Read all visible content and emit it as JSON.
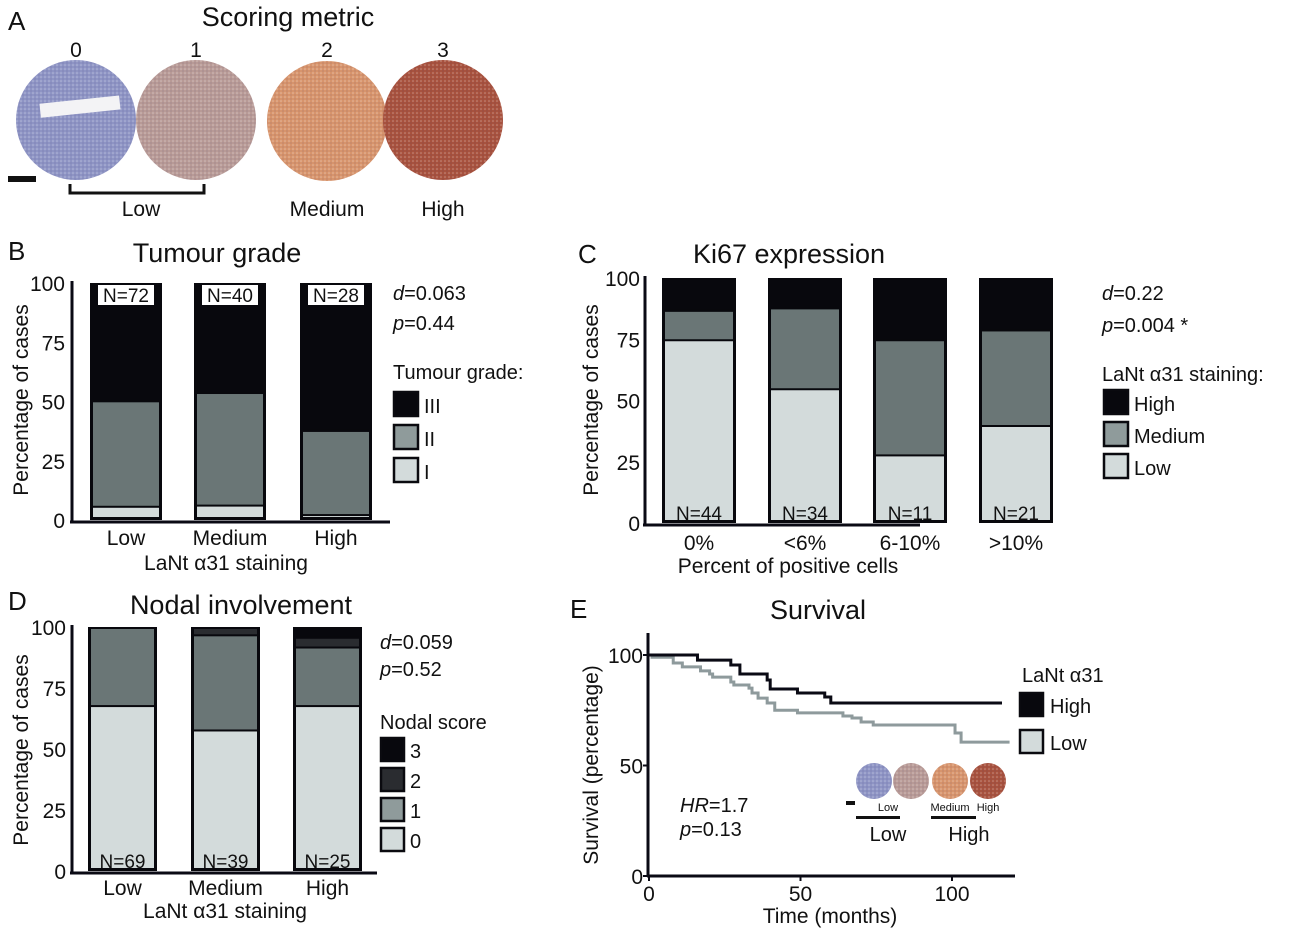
{
  "figure": {
    "panelA": {
      "letter": "A",
      "title": "Scoring metric",
      "scores": [
        "0",
        "1",
        "2",
        "3"
      ],
      "groups": [
        "Low",
        "Medium",
        "High"
      ],
      "core_colors": [
        "#8e94c4",
        "#b89a96",
        "#d7946c",
        "#a8523e"
      ]
    },
    "colors": {
      "dark": "#08080d",
      "darkgrey": "#2a2c30",
      "medium": "#6a7676",
      "medium_legend": "#8f9b9b",
      "light": "#d3dbdb",
      "high_line": "#0a0a14",
      "low_line": "#8e9a9c"
    }
  },
  "chart_data": [
    {
      "panel": "B",
      "type": "bar",
      "stacked": true,
      "title": "Tumour grade",
      "xlabel": "LaNt α31 staining",
      "ylabel": "Percentage of cases",
      "ylim": [
        0,
        100
      ],
      "yticks": [
        "0",
        "25",
        "50",
        "75",
        "100"
      ],
      "categories": [
        "Low",
        "Medium",
        "High"
      ],
      "n_labels": [
        "N=72",
        "N=40",
        "N=28"
      ],
      "n_position": "top",
      "series": [
        {
          "name": "I",
          "values": [
            6,
            6.5,
            2.5
          ]
        },
        {
          "name": "II",
          "values": [
            44.5,
            47.5,
            35.5
          ]
        },
        {
          "name": "III",
          "values": [
            49.5,
            46,
            62
          ]
        }
      ],
      "legend_title": "Tumour grade:",
      "legend": [
        "III",
        "II",
        "I"
      ],
      "stats": [
        {
          "italic": "d",
          "rest": "=0.063"
        },
        {
          "italic": "p",
          "rest": "=0.44"
        }
      ]
    },
    {
      "panel": "C",
      "type": "bar",
      "stacked": true,
      "title": "Ki67 expression",
      "xlabel": "Percent of positive cells",
      "ylabel": "Percentage of cases",
      "ylim": [
        0,
        100
      ],
      "yticks": [
        "0",
        "25",
        "50",
        "75",
        "100"
      ],
      "categories": [
        "0%",
        "<6%",
        "6-10%",
        ">10%"
      ],
      "n_labels": [
        "N=44",
        "N=34",
        "N=11",
        "N=21"
      ],
      "n_position": "bottom",
      "series": [
        {
          "name": "Low",
          "values": [
            75,
            55,
            28,
            40
          ]
        },
        {
          "name": "Medium",
          "values": [
            12,
            33,
            47,
            39
          ]
        },
        {
          "name": "High",
          "values": [
            13,
            12,
            25,
            21
          ]
        }
      ],
      "legend_title": "LaNt α31 staining:",
      "legend": [
        "High",
        "Medium",
        "Low"
      ],
      "stats": [
        {
          "italic": "d",
          "rest": "=0.22"
        },
        {
          "italic": "p",
          "rest": "=0.004 *"
        }
      ]
    },
    {
      "panel": "D",
      "type": "bar",
      "stacked": true,
      "title": "Nodal involvement",
      "xlabel": "LaNt α31 staining",
      "ylabel": "Percentage of cases",
      "ylim": [
        0,
        100
      ],
      "yticks": [
        "0",
        "25",
        "50",
        "75",
        "100"
      ],
      "categories": [
        "Low",
        "Medium",
        "High"
      ],
      "n_labels": [
        "N=69",
        "N=39",
        "N=25"
      ],
      "n_position": "bottom",
      "series": [
        {
          "name": "0",
          "values": [
            68,
            58,
            68
          ]
        },
        {
          "name": "1",
          "values": [
            32,
            39,
            24
          ]
        },
        {
          "name": "2",
          "values": [
            0,
            3,
            4
          ]
        },
        {
          "name": "3",
          "values": [
            0,
            0,
            4
          ]
        }
      ],
      "legend_title": "Nodal score",
      "legend": [
        "3",
        "2",
        "1",
        "0"
      ],
      "stats": [
        {
          "italic": "d",
          "rest": "=0.059"
        },
        {
          "italic": "p",
          "rest": "=0.52"
        }
      ]
    },
    {
      "panel": "E",
      "type": "line",
      "step": true,
      "title": "Survival",
      "xlabel": "Time (months)",
      "ylabel": "Survival (percentage)",
      "xlim": [
        0,
        120
      ],
      "ylim": [
        0,
        100
      ],
      "xticks": [
        "0",
        "50",
        "100"
      ],
      "yticks": [
        "0",
        "50",
        "100"
      ],
      "series": [
        {
          "name": "High",
          "x": [
            0,
            16,
            27,
            30,
            39,
            40,
            49,
            58,
            60,
            116.5
          ],
          "y": [
            100,
            97.7,
            95.5,
            91.4,
            88.7,
            84.6,
            82.8,
            81,
            78.3,
            78.3
          ]
        },
        {
          "name": "Low",
          "x": [
            0,
            1,
            8,
            11,
            17,
            20,
            21,
            27,
            28,
            33,
            34,
            36,
            39,
            41.5,
            49,
            64,
            67,
            70,
            74,
            101,
            103,
            119
          ],
          "y": [
            100,
            99,
            96.4,
            94.6,
            92.8,
            91.4,
            90,
            87.8,
            86.4,
            85,
            82.8,
            80.5,
            78.3,
            75,
            73.8,
            72.4,
            71.5,
            69.7,
            68.3,
            64.7,
            60.6,
            60.6
          ]
        }
      ],
      "legend_title": "LaNt α31",
      "legend": [
        "High",
        "Low"
      ],
      "stats": [
        {
          "italic": "HR",
          "rest": "=1.7"
        },
        {
          "italic": "p",
          "rest": "=0.13"
        }
      ],
      "inset": {
        "core_labels": [
          "Low",
          "Medium",
          "High"
        ],
        "group_labels": [
          "Low",
          "High"
        ]
      }
    }
  ]
}
